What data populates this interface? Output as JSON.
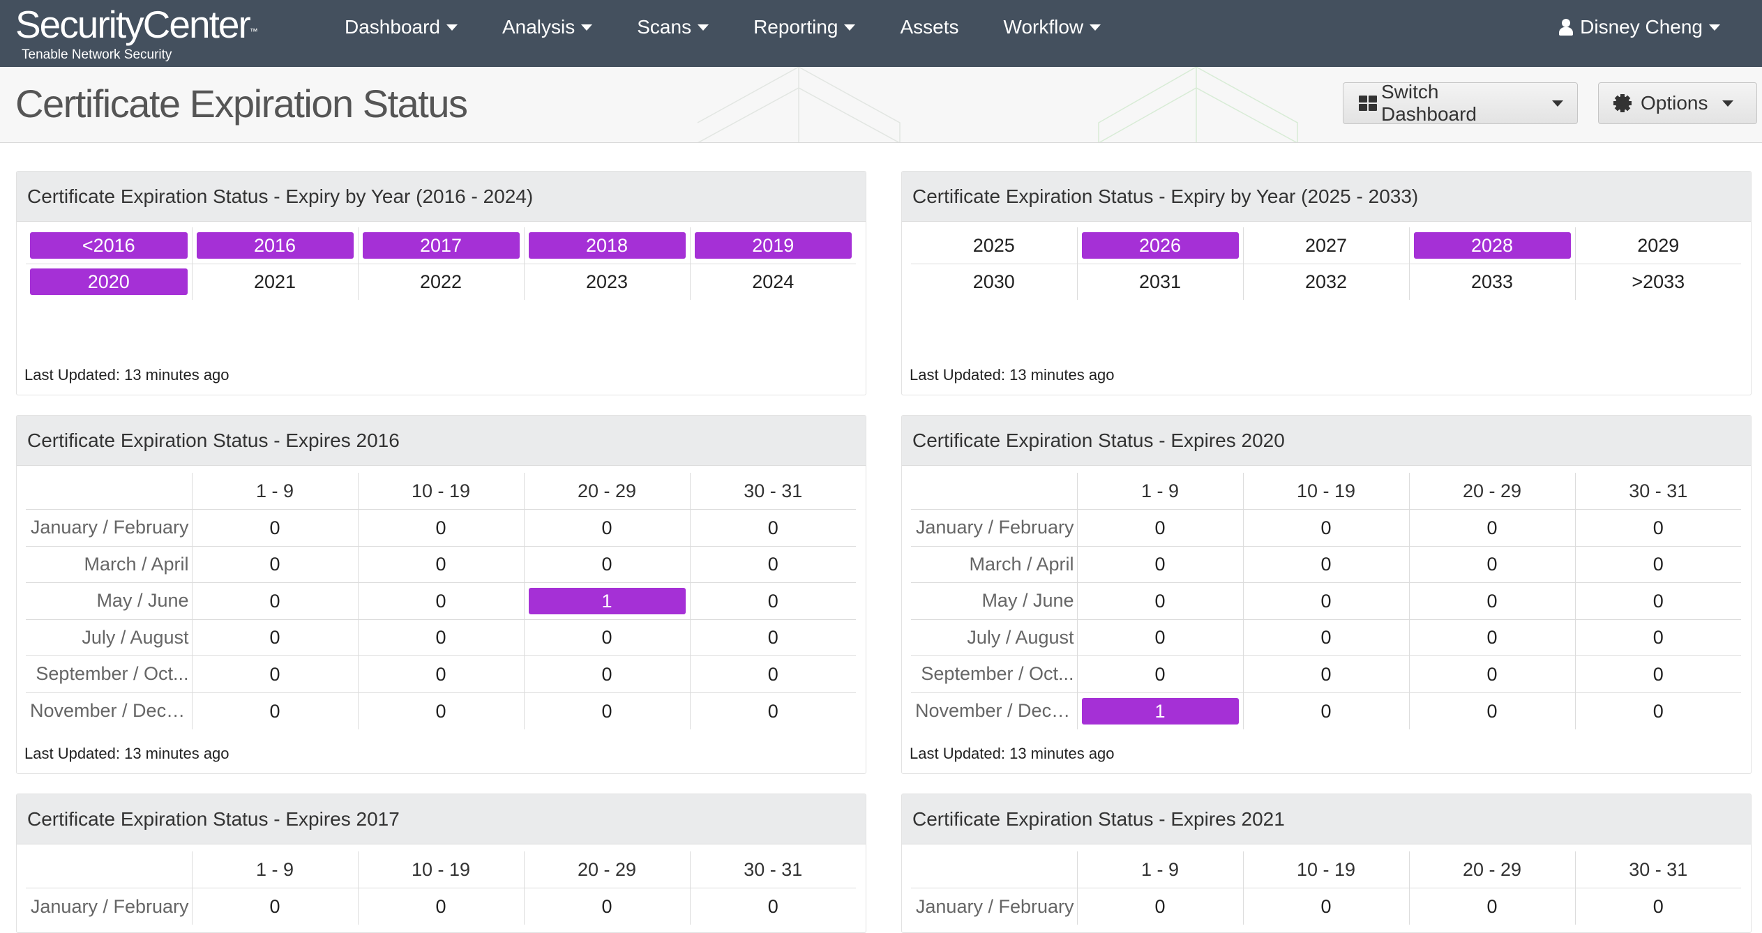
{
  "colors": {
    "nav_bg": "#44505e",
    "highlight": "#a530d6"
  },
  "brand": {
    "name": "SecurityCenter",
    "trademark": "™",
    "subtitle": "Tenable Network Security"
  },
  "nav": [
    "Dashboard",
    "Analysis",
    "Scans",
    "Reporting",
    "Assets",
    "Workflow"
  ],
  "user": {
    "name": "Disney Cheng"
  },
  "page": {
    "title": "Certificate Expiration Status",
    "switch_label": "Switch Dashboard",
    "options_label": "Options"
  },
  "panels": {
    "years_a": {
      "title": "Certificate Expiration Status - Expiry by Year (2016 - 2024)",
      "cells": [
        {
          "label": "<2016",
          "highlight": true
        },
        {
          "label": "2016",
          "highlight": true
        },
        {
          "label": "2017",
          "highlight": true
        },
        {
          "label": "2018",
          "highlight": true
        },
        {
          "label": "2019",
          "highlight": true
        },
        {
          "label": "2020",
          "highlight": true
        },
        {
          "label": "2021",
          "highlight": false
        },
        {
          "label": "2022",
          "highlight": false
        },
        {
          "label": "2023",
          "highlight": false
        },
        {
          "label": "2024",
          "highlight": false
        }
      ],
      "updated": "Last Updated: 13 minutes ago"
    },
    "years_b": {
      "title": "Certificate Expiration Status - Expiry by Year (2025 - 2033)",
      "cells": [
        {
          "label": "2025",
          "highlight": false
        },
        {
          "label": "2026",
          "highlight": true
        },
        {
          "label": "2027",
          "highlight": false
        },
        {
          "label": "2028",
          "highlight": true
        },
        {
          "label": "2029",
          "highlight": false
        },
        {
          "label": "2030",
          "highlight": false
        },
        {
          "label": "2031",
          "highlight": false
        },
        {
          "label": "2032",
          "highlight": false
        },
        {
          "label": "2033",
          "highlight": false
        },
        {
          "label": ">2033",
          "highlight": false
        }
      ],
      "updated": "Last Updated: 13 minutes ago"
    },
    "exp2016": {
      "title": "Certificate Expiration Status - Expires 2016",
      "columns": [
        "1 - 9",
        "10 - 19",
        "20 - 29",
        "30 - 31"
      ],
      "rows": [
        {
          "label": "January / February",
          "values": [
            "0",
            "0",
            "0",
            "0"
          ],
          "hi": []
        },
        {
          "label": "March / April",
          "values": [
            "0",
            "0",
            "0",
            "0"
          ],
          "hi": []
        },
        {
          "label": "May / June",
          "values": [
            "0",
            "0",
            "1",
            "0"
          ],
          "hi": [
            2
          ]
        },
        {
          "label": "July / August",
          "values": [
            "0",
            "0",
            "0",
            "0"
          ],
          "hi": []
        },
        {
          "label": "September / Oct...",
          "values": [
            "0",
            "0",
            "0",
            "0"
          ],
          "hi": []
        },
        {
          "label": "November / Dece...",
          "values": [
            "0",
            "0",
            "0",
            "0"
          ],
          "hi": []
        }
      ],
      "updated": "Last Updated: 13 minutes ago"
    },
    "exp2020": {
      "title": "Certificate Expiration Status - Expires 2020",
      "columns": [
        "1 - 9",
        "10 - 19",
        "20 - 29",
        "30 - 31"
      ],
      "rows": [
        {
          "label": "January / February",
          "values": [
            "0",
            "0",
            "0",
            "0"
          ],
          "hi": []
        },
        {
          "label": "March / April",
          "values": [
            "0",
            "0",
            "0",
            "0"
          ],
          "hi": []
        },
        {
          "label": "May / June",
          "values": [
            "0",
            "0",
            "0",
            "0"
          ],
          "hi": []
        },
        {
          "label": "July / August",
          "values": [
            "0",
            "0",
            "0",
            "0"
          ],
          "hi": []
        },
        {
          "label": "September / Oct...",
          "values": [
            "0",
            "0",
            "0",
            "0"
          ],
          "hi": []
        },
        {
          "label": "November / Dece...",
          "values": [
            "1",
            "0",
            "0",
            "0"
          ],
          "hi": [
            0
          ]
        }
      ],
      "updated": "Last Updated: 13 minutes ago"
    },
    "exp2017": {
      "title": "Certificate Expiration Status - Expires 2017",
      "columns": [
        "1 - 9",
        "10 - 19",
        "20 - 29",
        "30 - 31"
      ],
      "rows": [
        {
          "label": "January / February",
          "values": [
            "0",
            "0",
            "0",
            "0"
          ],
          "hi": []
        }
      ]
    },
    "exp2021": {
      "title": "Certificate Expiration Status - Expires 2021",
      "columns": [
        "1 - 9",
        "10 - 19",
        "20 - 29",
        "30 - 31"
      ],
      "rows": [
        {
          "label": "January / February",
          "values": [
            "0",
            "0",
            "0",
            "0"
          ],
          "hi": []
        }
      ]
    }
  }
}
